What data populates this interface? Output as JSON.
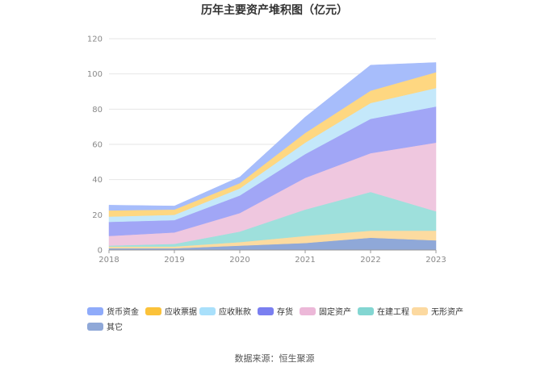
{
  "chart_data": {
    "type": "area",
    "title": "历年主要资产堆积图（亿元）",
    "x": [
      "2018",
      "2019",
      "2020",
      "2021",
      "2022",
      "2023"
    ],
    "ylim": [
      0,
      120
    ],
    "yticks": [
      0,
      20,
      40,
      60,
      80,
      100,
      120
    ],
    "stacked": true,
    "grid": true,
    "legend_position": "bottom",
    "series": [
      {
        "name": "其它",
        "color": "#8fa8d8",
        "values": [
          1.0,
          1.0,
          2.5,
          4.0,
          7.0,
          5.5
        ]
      },
      {
        "name": "无形资产",
        "color": "#fcdba0",
        "values": [
          1.0,
          1.0,
          2.0,
          4.0,
          4.0,
          5.5
        ]
      },
      {
        "name": "在建工程",
        "color": "#9ee0dc",
        "values": [
          0.5,
          1.5,
          6.0,
          15.0,
          22.0,
          11.0
        ]
      },
      {
        "name": "固定资产",
        "color": "#efc7df",
        "values": [
          5.5,
          6.5,
          10.5,
          18.0,
          22.0,
          39.0
        ]
      },
      {
        "name": "存货",
        "color": "#a1a6f6",
        "values": [
          8.0,
          7.0,
          10.0,
          13.5,
          19.5,
          20.5
        ]
      },
      {
        "name": "应收账款",
        "color": "#c4e8fa",
        "values": [
          3.0,
          3.0,
          4.0,
          6.5,
          9.0,
          10.5
        ]
      },
      {
        "name": "应收票据",
        "color": "#fed781",
        "values": [
          3.5,
          3.0,
          3.0,
          5.5,
          7.0,
          9.0
        ]
      },
      {
        "name": "货币资金",
        "color": "#a7bdfb",
        "values": [
          3.0,
          2.0,
          3.5,
          9.0,
          14.5,
          5.5
        ]
      }
    ],
    "legend": [
      {
        "name": "货币资金",
        "color": "#8fabfa"
      },
      {
        "name": "应收票据",
        "color": "#fbc23a"
      },
      {
        "name": "应收账款",
        "color": "#a9e0fb"
      },
      {
        "name": "存货",
        "color": "#7a7ff0"
      },
      {
        "name": "固定资产",
        "color": "#ecb8d8"
      },
      {
        "name": "在建工程",
        "color": "#83d6d2"
      },
      {
        "name": "无形资产",
        "color": "#fcd9a0"
      },
      {
        "name": "其它",
        "color": "#8fa8d8"
      }
    ]
  },
  "footer": {
    "source": "数据来源：恒生聚源"
  }
}
